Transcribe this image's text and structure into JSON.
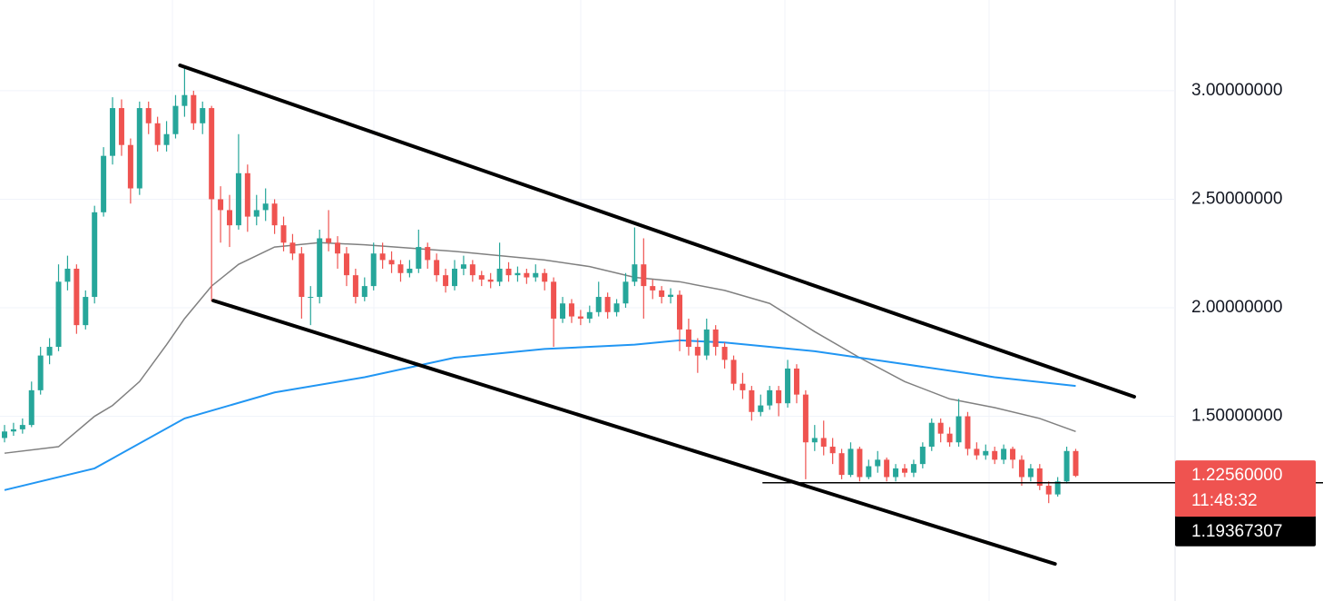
{
  "chart_data": {
    "type": "candlestick",
    "ylim": [
      0.649,
      3.418
    ],
    "yticks": [
      {
        "value": 3,
        "label": "3.00000000"
      },
      {
        "value": 2.5,
        "label": "2.50000000"
      },
      {
        "value": 2,
        "label": "2.00000000"
      },
      {
        "value": 1.5,
        "label": "1.50000000"
      }
    ],
    "grid": true,
    "up_color": "#26a69a",
    "down_color": "#ef5350",
    "ohlc": [
      [
        1.4,
        1.46,
        1.38,
        1.43
      ],
      [
        1.43,
        1.47,
        1.41,
        1.44
      ],
      [
        1.44,
        1.49,
        1.42,
        1.46
      ],
      [
        1.46,
        1.66,
        1.45,
        1.62
      ],
      [
        1.62,
        1.82,
        1.6,
        1.78
      ],
      [
        1.78,
        1.86,
        1.74,
        1.82
      ],
      [
        1.82,
        2.2,
        1.8,
        2.12
      ],
      [
        2.12,
        2.24,
        2.08,
        2.18
      ],
      [
        2.18,
        2.2,
        1.88,
        1.92
      ],
      [
        1.92,
        2.08,
        1.9,
        2.05
      ],
      [
        2.05,
        2.47,
        2.02,
        2.44
      ],
      [
        2.44,
        2.74,
        2.42,
        2.7
      ],
      [
        2.7,
        2.97,
        2.66,
        2.92
      ],
      [
        2.92,
        2.96,
        2.7,
        2.75
      ],
      [
        2.75,
        2.78,
        2.48,
        2.55
      ],
      [
        2.55,
        2.95,
        2.52,
        2.92
      ],
      [
        2.92,
        2.95,
        2.8,
        2.85
      ],
      [
        2.85,
        2.88,
        2.72,
        2.75
      ],
      [
        2.75,
        2.86,
        2.72,
        2.8
      ],
      [
        2.8,
        2.98,
        2.78,
        2.93
      ],
      [
        2.93,
        3.11,
        2.88,
        2.98
      ],
      [
        2.98,
        3.0,
        2.82,
        2.85
      ],
      [
        2.85,
        2.95,
        2.8,
        2.92
      ],
      [
        2.92,
        2.93,
        2.03,
        2.5
      ],
      [
        2.5,
        2.56,
        2.3,
        2.45
      ],
      [
        2.45,
        2.52,
        2.28,
        2.38
      ],
      [
        2.38,
        2.8,
        2.36,
        2.62
      ],
      [
        2.62,
        2.66,
        2.35,
        2.42
      ],
      [
        2.42,
        2.52,
        2.38,
        2.45
      ],
      [
        2.45,
        2.55,
        2.4,
        2.48
      ],
      [
        2.48,
        2.5,
        2.34,
        2.38
      ],
      [
        2.38,
        2.42,
        2.26,
        2.3
      ],
      [
        2.3,
        2.34,
        2.22,
        2.25
      ],
      [
        2.25,
        2.28,
        1.95,
        2.05
      ],
      [
        2.05,
        2.1,
        1.92,
        2.05
      ],
      [
        2.05,
        2.36,
        2.02,
        2.32
      ],
      [
        2.32,
        2.45,
        2.26,
        2.3
      ],
      [
        2.3,
        2.33,
        2.18,
        2.25
      ],
      [
        2.25,
        2.28,
        2.1,
        2.15
      ],
      [
        2.15,
        2.18,
        2.02,
        2.05
      ],
      [
        2.05,
        2.14,
        2.03,
        2.1
      ],
      [
        2.1,
        2.3,
        2.08,
        2.25
      ],
      [
        2.25,
        2.3,
        2.18,
        2.22
      ],
      [
        2.22,
        2.26,
        2.16,
        2.2
      ],
      [
        2.2,
        2.22,
        2.12,
        2.16
      ],
      [
        2.16,
        2.22,
        2.14,
        2.18
      ],
      [
        2.18,
        2.36,
        2.16,
        2.28
      ],
      [
        2.28,
        2.3,
        2.18,
        2.22
      ],
      [
        2.22,
        2.25,
        2.12,
        2.15
      ],
      [
        2.15,
        2.18,
        2.07,
        2.1
      ],
      [
        2.1,
        2.22,
        2.08,
        2.18
      ],
      [
        2.18,
        2.24,
        2.15,
        2.2
      ],
      [
        2.2,
        2.22,
        2.12,
        2.15
      ],
      [
        2.15,
        2.17,
        2.1,
        2.13
      ],
      [
        2.13,
        2.16,
        2.09,
        2.12
      ],
      [
        2.12,
        2.3,
        2.1,
        2.18
      ],
      [
        2.18,
        2.21,
        2.12,
        2.15
      ],
      [
        2.15,
        2.19,
        2.12,
        2.16
      ],
      [
        2.16,
        2.18,
        2.11,
        2.14
      ],
      [
        2.14,
        2.2,
        2.12,
        2.16
      ],
      [
        2.16,
        2.18,
        2.08,
        2.12
      ],
      [
        2.12,
        2.14,
        1.82,
        1.95
      ],
      [
        1.95,
        2.05,
        1.93,
        2.02
      ],
      [
        2.02,
        2.04,
        1.93,
        1.96
      ],
      [
        1.96,
        1.99,
        1.92,
        1.95
      ],
      [
        1.95,
        2.01,
        1.93,
        1.98
      ],
      [
        1.98,
        2.12,
        1.96,
        2.05
      ],
      [
        2.05,
        2.07,
        1.95,
        1.98
      ],
      [
        1.98,
        2.04,
        1.96,
        2.02
      ],
      [
        2.02,
        2.16,
        2.0,
        2.12
      ],
      [
        2.12,
        2.37,
        2.1,
        2.2
      ],
      [
        2.2,
        2.32,
        1.95,
        2.1
      ],
      [
        2.1,
        2.13,
        2.04,
        2.08
      ],
      [
        2.08,
        2.1,
        2.02,
        2.05
      ],
      [
        2.05,
        2.09,
        2.02,
        2.06
      ],
      [
        2.06,
        2.08,
        1.8,
        1.9
      ],
      [
        1.9,
        1.95,
        1.78,
        1.82
      ],
      [
        1.82,
        1.86,
        1.7,
        1.78
      ],
      [
        1.78,
        1.95,
        1.76,
        1.9
      ],
      [
        1.9,
        1.92,
        1.78,
        1.82
      ],
      [
        1.82,
        1.84,
        1.72,
        1.76
      ],
      [
        1.76,
        1.78,
        1.62,
        1.65
      ],
      [
        1.65,
        1.7,
        1.58,
        1.62
      ],
      [
        1.62,
        1.64,
        1.48,
        1.52
      ],
      [
        1.52,
        1.6,
        1.5,
        1.55
      ],
      [
        1.55,
        1.64,
        1.53,
        1.62
      ],
      [
        1.62,
        1.64,
        1.5,
        1.56
      ],
      [
        1.56,
        1.76,
        1.54,
        1.72
      ],
      [
        1.72,
        1.74,
        1.56,
        1.6
      ],
      [
        1.6,
        1.62,
        1.21,
        1.38
      ],
      [
        1.38,
        1.46,
        1.34,
        1.4
      ],
      [
        1.4,
        1.48,
        1.32,
        1.36
      ],
      [
        1.36,
        1.4,
        1.28,
        1.33
      ],
      [
        1.33,
        1.35,
        1.21,
        1.23
      ],
      [
        1.23,
        1.38,
        1.22,
        1.35
      ],
      [
        1.35,
        1.36,
        1.2,
        1.22
      ],
      [
        1.22,
        1.3,
        1.21,
        1.27
      ],
      [
        1.27,
        1.34,
        1.24,
        1.3
      ],
      [
        1.3,
        1.31,
        1.2,
        1.22
      ],
      [
        1.22,
        1.28,
        1.2,
        1.26
      ],
      [
        1.26,
        1.28,
        1.22,
        1.24
      ],
      [
        1.24,
        1.3,
        1.22,
        1.28
      ],
      [
        1.28,
        1.38,
        1.26,
        1.36
      ],
      [
        1.36,
        1.49,
        1.34,
        1.47
      ],
      [
        1.47,
        1.49,
        1.38,
        1.42
      ],
      [
        1.42,
        1.45,
        1.36,
        1.38
      ],
      [
        1.38,
        1.58,
        1.36,
        1.5
      ],
      [
        1.5,
        1.52,
        1.32,
        1.35
      ],
      [
        1.35,
        1.38,
        1.3,
        1.32
      ],
      [
        1.32,
        1.37,
        1.3,
        1.34
      ],
      [
        1.34,
        1.36,
        1.28,
        1.3
      ],
      [
        1.3,
        1.37,
        1.28,
        1.35
      ],
      [
        1.35,
        1.36,
        1.26,
        1.3
      ],
      [
        1.3,
        1.32,
        1.18,
        1.22
      ],
      [
        1.22,
        1.28,
        1.2,
        1.26
      ],
      [
        1.26,
        1.28,
        1.16,
        1.18
      ],
      [
        1.18,
        1.2,
        1.1,
        1.14
      ],
      [
        1.14,
        1.22,
        1.13,
        1.2
      ],
      [
        1.2,
        1.36,
        1.19,
        1.34
      ],
      [
        1.34,
        1.35,
        1.22,
        1.2256
      ]
    ],
    "series": [
      {
        "color": "#808080",
        "x": [
          0,
          6,
          10,
          12,
          15,
          18,
          20,
          23,
          26,
          30,
          35,
          40,
          50,
          60,
          65,
          70,
          75,
          80,
          85,
          90,
          95,
          100,
          105,
          110,
          115,
          119
        ],
        "values": [
          1.33,
          1.36,
          1.5,
          1.55,
          1.66,
          1.83,
          1.95,
          2.1,
          2.2,
          2.28,
          2.3,
          2.29,
          2.26,
          2.22,
          2.19,
          2.14,
          2.12,
          2.08,
          2.02,
          1.89,
          1.77,
          1.66,
          1.58,
          1.54,
          1.49,
          1.43
        ]
      },
      {
        "color": "#2196f3",
        "x": [
          0,
          10,
          20,
          30,
          40,
          50,
          60,
          70,
          75,
          80,
          90,
          100,
          110,
          119
        ],
        "values": [
          1.16,
          1.26,
          1.49,
          1.61,
          1.68,
          1.77,
          1.81,
          1.83,
          1.85,
          1.84,
          1.8,
          1.74,
          1.68,
          1.64
        ]
      }
    ],
    "trendlines": [
      {
        "x": [
          19.5,
          125.5
        ],
        "values": [
          3.117,
          1.59
        ]
      },
      {
        "x": [
          23.2,
          116.7
        ],
        "values": [
          2.033,
          0.82
        ]
      }
    ],
    "horizontal_line": {
      "x": 84.2,
      "value": 1.19367307
    },
    "last_price": {
      "value": 1.2256,
      "label": "1.22560000",
      "countdown": "11:48:32"
    }
  }
}
